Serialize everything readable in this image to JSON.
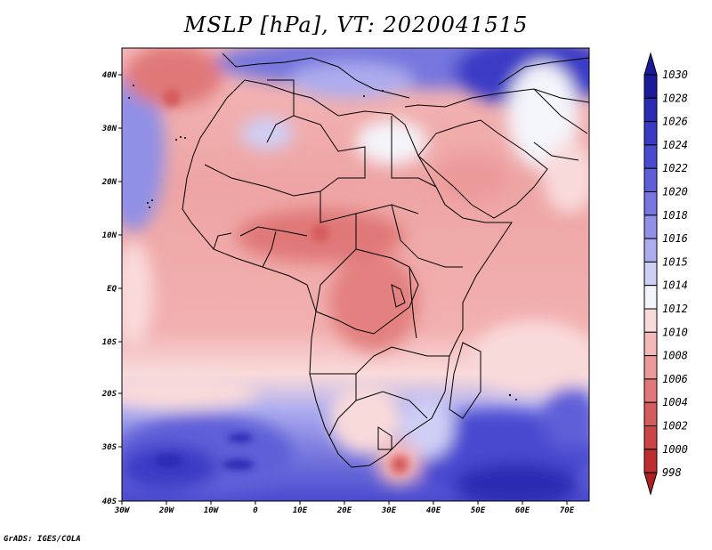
{
  "title": "MSLP [hPa], VT: 2020041515",
  "footer": "GrADS: IGES/COLA",
  "map": {
    "lon_range": [
      -30,
      75
    ],
    "lat_range": [
      -40,
      45
    ],
    "lon_ticks": [
      "30W",
      "20W",
      "10W",
      "0",
      "10E",
      "20E",
      "30E",
      "40E",
      "50E",
      "60E",
      "70E"
    ],
    "lat_ticks": [
      "40N",
      "30N",
      "20N",
      "10N",
      "EQ",
      "10S",
      "20S",
      "30S",
      "40S"
    ]
  },
  "colorbar": {
    "labels": [
      "1030",
      "1028",
      "1026",
      "1024",
      "1022",
      "1020",
      "1018",
      "1016",
      "1015",
      "1014",
      "1012",
      "1010",
      "1008",
      "1006",
      "1004",
      "1002",
      "1000",
      "998"
    ],
    "colors": [
      "#1a1a9a",
      "#2a2ab4",
      "#3a3ac6",
      "#4a4ad0",
      "#5e5ed8",
      "#7676de",
      "#9090e6",
      "#acacef",
      "#cfcff6",
      "#f4f4fb",
      "#f9dada",
      "#f4b8b8",
      "#ec9999",
      "#e07878",
      "#d45c5c",
      "#cc4444",
      "#bf2e2e",
      "#ae2020"
    ]
  },
  "low_centers": [
    {
      "label": "low-30e-34s",
      "lon": 32,
      "lat": -34
    },
    {
      "label": "low-20w-36n",
      "lon": -22,
      "lat": 36
    }
  ]
}
